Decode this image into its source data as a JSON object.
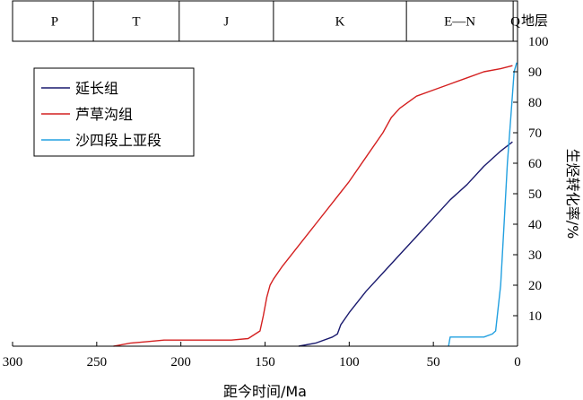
{
  "chart_data": {
    "type": "line",
    "xlabel": "距今时间/Ma",
    "ylabel": "生烃转化率/%",
    "xlim": [
      300,
      0
    ],
    "ylim": [
      0,
      100
    ],
    "x_ticks": [
      300,
      250,
      200,
      150,
      100,
      50,
      0
    ],
    "x_tick_labels": [
      "300",
      "250",
      "200",
      "150",
      "100",
      "50",
      "0"
    ],
    "y_ticks": [
      10,
      20,
      30,
      40,
      50,
      60,
      70,
      80,
      90,
      100
    ],
    "y_tick_labels": [
      "10",
      "20",
      "30",
      "40",
      "50",
      "60",
      "70",
      "80",
      "90",
      "100"
    ],
    "grid": false,
    "legend_position": "top-left",
    "strata_header_label": "地层",
    "strata": [
      {
        "label": "P",
        "from": 298,
        "to": 252
      },
      {
        "label": "T",
        "from": 252,
        "to": 201
      },
      {
        "label": "J",
        "from": 201,
        "to": 145
      },
      {
        "label": "K",
        "from": 145,
        "to": 66
      },
      {
        "label": "E—N",
        "from": 66,
        "to": 2.6
      },
      {
        "label": "Q",
        "from": 2.6,
        "to": 0
      }
    ],
    "series": [
      {
        "name": "延长组",
        "color": "#1a1a6e",
        "points": [
          [
            130,
            0
          ],
          [
            120,
            1
          ],
          [
            110,
            3
          ],
          [
            107,
            4
          ],
          [
            105,
            7
          ],
          [
            100,
            11
          ],
          [
            90,
            18
          ],
          [
            80,
            24
          ],
          [
            70,
            30
          ],
          [
            60,
            36
          ],
          [
            50,
            42
          ],
          [
            40,
            48
          ],
          [
            30,
            53
          ],
          [
            20,
            59
          ],
          [
            10,
            64
          ],
          [
            3,
            67
          ]
        ]
      },
      {
        "name": "芦草沟组",
        "color": "#d42020",
        "points": [
          [
            240,
            0
          ],
          [
            230,
            1
          ],
          [
            220,
            1.5
          ],
          [
            210,
            2
          ],
          [
            200,
            2
          ],
          [
            190,
            2
          ],
          [
            180,
            2
          ],
          [
            170,
            2
          ],
          [
            160,
            2.5
          ],
          [
            153,
            5
          ],
          [
            151,
            10
          ],
          [
            149,
            16
          ],
          [
            147,
            20
          ],
          [
            145,
            22
          ],
          [
            140,
            26
          ],
          [
            130,
            33
          ],
          [
            120,
            40
          ],
          [
            110,
            47
          ],
          [
            100,
            54
          ],
          [
            90,
            62
          ],
          [
            80,
            70
          ],
          [
            75,
            75
          ],
          [
            70,
            78
          ],
          [
            60,
            82
          ],
          [
            50,
            84
          ],
          [
            40,
            86
          ],
          [
            30,
            88
          ],
          [
            20,
            90
          ],
          [
            10,
            91
          ],
          [
            3,
            92
          ]
        ]
      },
      {
        "name": "沙四段上亚段",
        "color": "#22a0e0",
        "points": [
          [
            41,
            0
          ],
          [
            40,
            3
          ],
          [
            30,
            3
          ],
          [
            20,
            3
          ],
          [
            15,
            4
          ],
          [
            13,
            5
          ],
          [
            10,
            20
          ],
          [
            8,
            40
          ],
          [
            6,
            60
          ],
          [
            4,
            75
          ],
          [
            2,
            90
          ],
          [
            0.5,
            93
          ]
        ]
      }
    ]
  }
}
